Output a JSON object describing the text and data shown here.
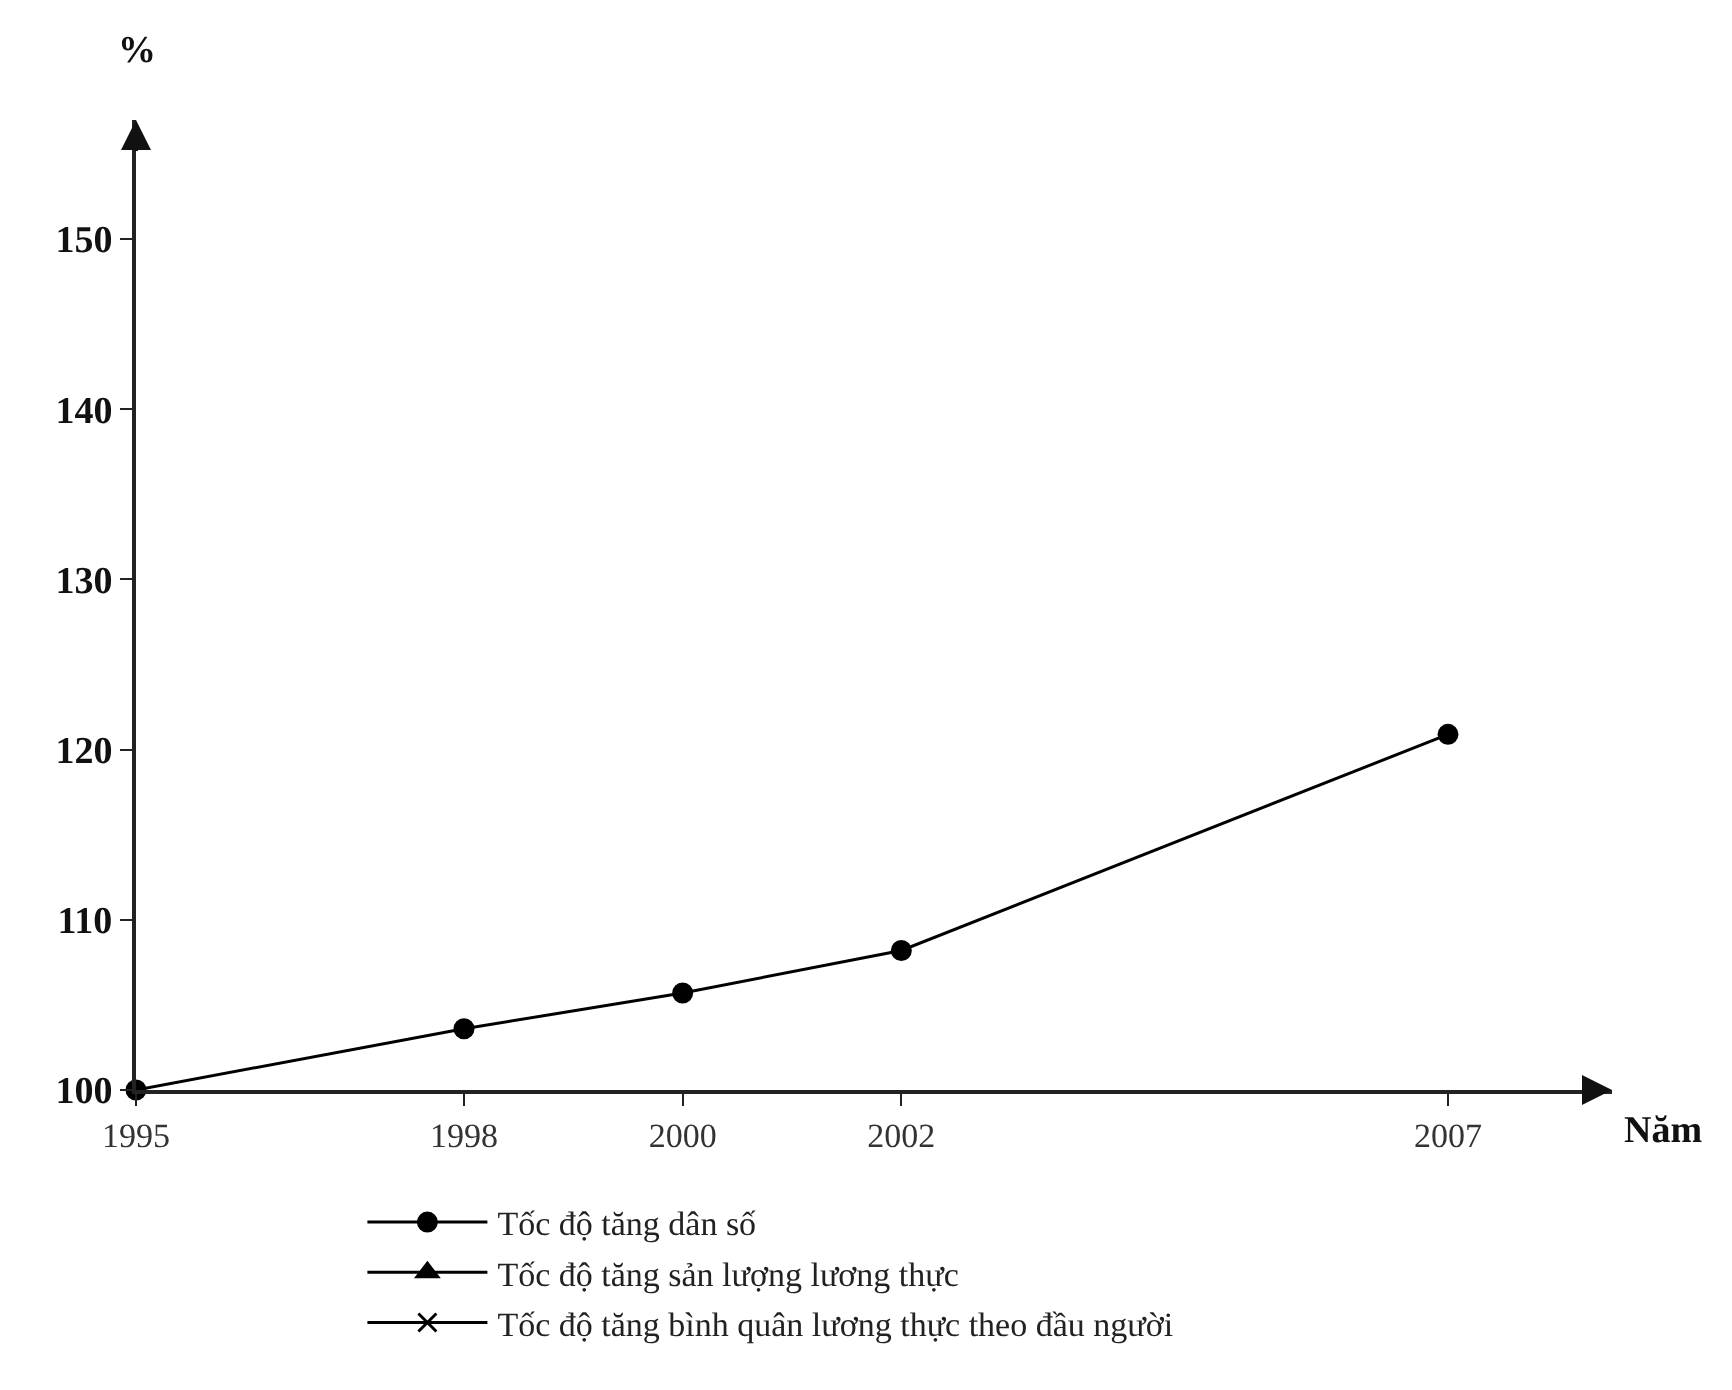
{
  "chart_data": {
    "type": "line",
    "xlabel": "Năm",
    "ylabel": "%",
    "x": [
      1995,
      1998,
      2000,
      2002,
      2007
    ],
    "series": [
      {
        "name": "Tốc độ tăng dân số",
        "color": "#000000",
        "marker": "circle",
        "values": [
          100,
          103.6,
          105.7,
          108.2,
          120.9
        ]
      },
      {
        "name": "Tốc độ tăng sản lượng lương thực",
        "color": "#000000",
        "marker": "triangle",
        "values": [
          null,
          null,
          null,
          null,
          null
        ]
      },
      {
        "name": "Tốc độ tăng bình quân lương thực theo đầu người",
        "color": "#000000",
        "marker": "cross",
        "values": [
          null,
          null,
          null,
          null,
          null
        ]
      }
    ],
    "xlim": [
      1995,
      2008.5
    ],
    "xticks": [
      1995,
      1998,
      2000,
      2002,
      2007
    ],
    "ylim": [
      100,
      157
    ],
    "yticks": [
      100,
      110,
      120,
      130,
      140,
      150
    ],
    "grid": false,
    "legend": "bottom",
    "line_style": "solid"
  }
}
